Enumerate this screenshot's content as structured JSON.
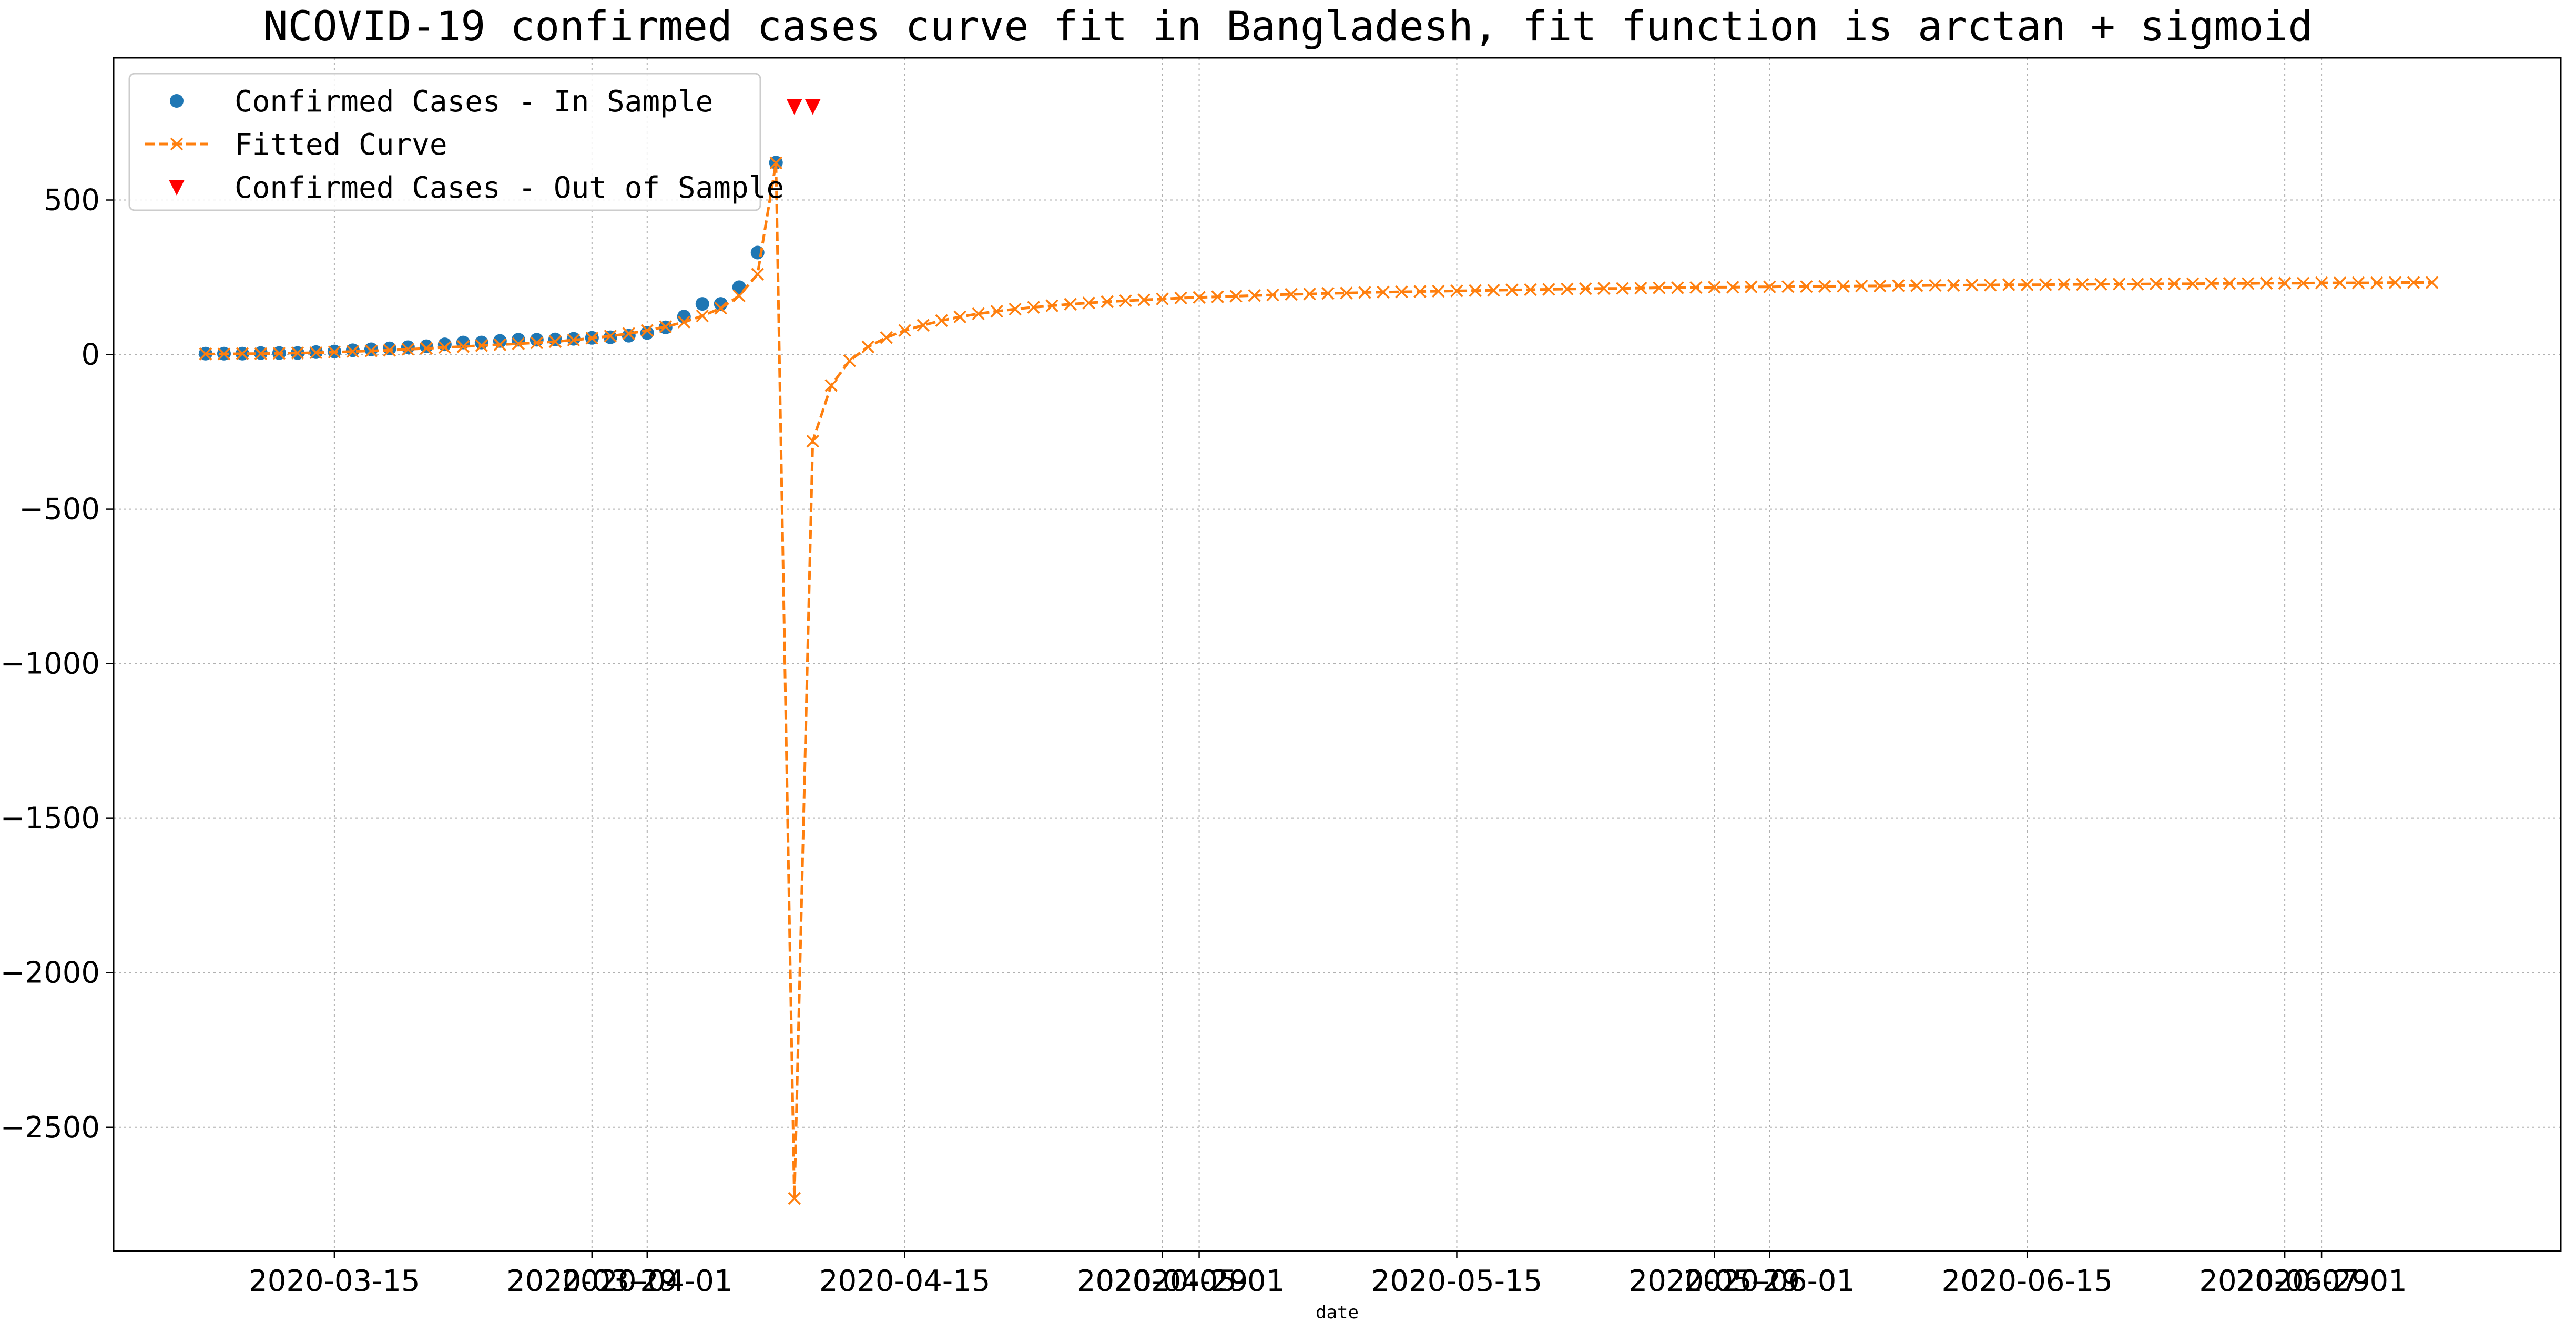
{
  "chart_data": {
    "type": "line",
    "title": "NCOVID-19 confirmed cases curve fit in Bangladesh, fit function is arctan + sigmoid",
    "xlabel": "date",
    "ylabel": "",
    "grid": true,
    "legend_position": "top-left",
    "x_range": [
      "2020-03-03",
      "2020-07-14"
    ],
    "ylim": [
      -2900,
      960
    ],
    "y_ticks": [
      500,
      0,
      -500,
      -1000,
      -1500,
      -2000,
      -2500
    ],
    "x_ticks": [
      {
        "date": "2020-03-15",
        "label": "2020-03-15"
      },
      {
        "date": "2020-03-29",
        "label": "2020-03-29"
      },
      {
        "date": "2020-04-01",
        "label": "2020-04-01"
      },
      {
        "date": "2020-04-15",
        "label": "2020-04-15"
      },
      {
        "date": "2020-04-29",
        "label": "2020-04-29"
      },
      {
        "date": "2020-05-01",
        "label": "2020-05-01"
      },
      {
        "date": "2020-05-15",
        "label": "2020-05-15"
      },
      {
        "date": "2020-05-29",
        "label": "2020-05-29"
      },
      {
        "date": "2020-06-01",
        "label": "2020-06-01"
      },
      {
        "date": "2020-06-15",
        "label": "2020-06-15"
      },
      {
        "date": "2020-06-29",
        "label": "2020-06-29"
      },
      {
        "date": "2020-07-01",
        "label": "2020-07-01"
      }
    ],
    "series": [
      {
        "name": "Confirmed Cases - In Sample",
        "kind": "scatter",
        "marker": "circle",
        "color": "#1f77b4",
        "start_date": "2020-03-08",
        "values": [
          3,
          3,
          3,
          5,
          5,
          5,
          8,
          10,
          14,
          17,
          20,
          24,
          27,
          33,
          39,
          39,
          44,
          48,
          48,
          49,
          51,
          54,
          56,
          61,
          70,
          88,
          123,
          164,
          164,
          218,
          330,
          621
        ]
      },
      {
        "name": "Fitted Curve",
        "kind": "line",
        "marker": "x",
        "linestyle": "dashed",
        "color": "#ff7f0e",
        "start_date": "2020-03-08",
        "values": [
          2,
          2,
          3,
          3,
          4,
          5,
          6,
          8,
          10,
          12,
          14,
          17,
          20,
          23,
          26,
          29,
          32,
          35,
          38,
          42,
          47,
          53,
          60,
          68,
          78,
          90,
          105,
          125,
          150,
          190,
          260,
          620,
          -2730,
          -280,
          -100,
          -20,
          25,
          55,
          78,
          95,
          110,
          122,
          132,
          140,
          147,
          153,
          158,
          163,
          167,
          171,
          174,
          177,
          180,
          183,
          185,
          187,
          189,
          191,
          193,
          195,
          196,
          198,
          199,
          201,
          202,
          203,
          204,
          205,
          206,
          207,
          208,
          209,
          210,
          211,
          212,
          213,
          214,
          214,
          215,
          216,
          216,
          217,
          218,
          218,
          219,
          219,
          220,
          220,
          221,
          221,
          222,
          222,
          223,
          223,
          224,
          224,
          225,
          225,
          226,
          226,
          226,
          227,
          227,
          228,
          228,
          228,
          229,
          229,
          229,
          230,
          230,
          230,
          231,
          231,
          231,
          232,
          232,
          232,
          232,
          233,
          233,
          233
        ]
      },
      {
        "name": "Confirmed Cases - Out of Sample",
        "kind": "scatter",
        "marker": "triangle_down",
        "color": "#ff0000",
        "points": [
          {
            "date": "2020-04-09",
            "y": 803
          },
          {
            "date": "2020-04-10",
            "y": 803
          }
        ]
      }
    ]
  }
}
